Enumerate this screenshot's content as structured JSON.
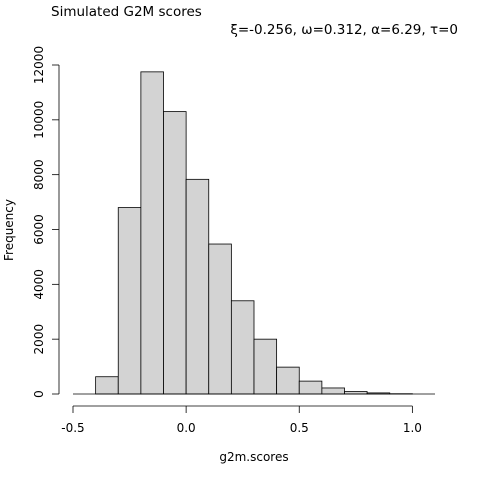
{
  "chart_data": {
    "type": "bar",
    "title": "Simulated G2M scores",
    "subtitle": "ξ=-0.256, ω=0.312, α=6.29, τ=0",
    "xlabel": "g2m.scores",
    "ylabel": "Frequency",
    "xlim": [
      -0.5,
      1.1
    ],
    "ylim": [
      0,
      12000
    ],
    "x_ticks": [
      -0.5,
      0.0,
      0.5,
      1.0
    ],
    "x_tick_labels": [
      "-0.5",
      "0.0",
      "0.5",
      "1.0"
    ],
    "y_ticks": [
      0,
      2000,
      4000,
      6000,
      8000,
      10000,
      12000
    ],
    "y_tick_labels": [
      "0",
      "2000",
      "4000",
      "6000",
      "8000",
      "10000",
      "12000"
    ],
    "bins": [
      {
        "x0": -0.4,
        "x1": -0.3,
        "count": 630
      },
      {
        "x0": -0.3,
        "x1": -0.2,
        "count": 6800
      },
      {
        "x0": -0.2,
        "x1": -0.1,
        "count": 11750
      },
      {
        "x0": -0.1,
        "x1": 0.0,
        "count": 10300
      },
      {
        "x0": 0.0,
        "x1": 0.1,
        "count": 7830
      },
      {
        "x0": 0.1,
        "x1": 0.2,
        "count": 5470
      },
      {
        "x0": 0.2,
        "x1": 0.3,
        "count": 3400
      },
      {
        "x0": 0.3,
        "x1": 0.4,
        "count": 2000
      },
      {
        "x0": 0.4,
        "x1": 0.5,
        "count": 980
      },
      {
        "x0": 0.5,
        "x1": 0.6,
        "count": 470
      },
      {
        "x0": 0.6,
        "x1": 0.7,
        "count": 220
      },
      {
        "x0": 0.7,
        "x1": 0.8,
        "count": 90
      },
      {
        "x0": 0.8,
        "x1": 0.9,
        "count": 40
      },
      {
        "x0": 0.9,
        "x1": 1.0,
        "count": 10
      }
    ],
    "bar_fill": "#d3d3d3",
    "bar_stroke": "#000000",
    "grid": false,
    "legend": "none"
  }
}
